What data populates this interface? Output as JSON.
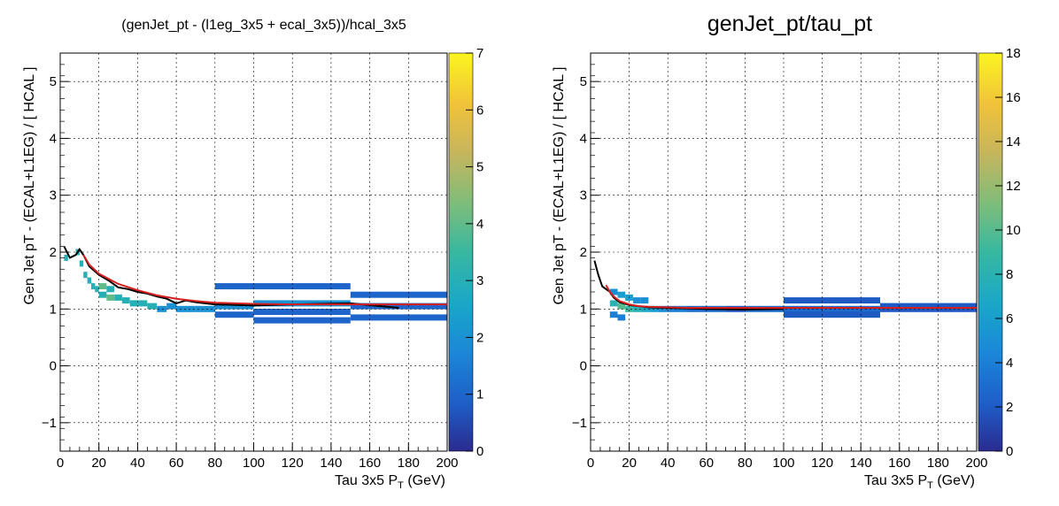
{
  "chart_data": [
    {
      "type": "heatmap",
      "title": "(genJet_pt - (l1eg_3x5 + ecal_3x5))/hcal_3x5",
      "xlabel": "Tau 3x5 P_T (GeV)",
      "ylabel": "Gen Jet pT - (ECAL+L1EG) / [ HCAL ]",
      "xlim": [
        0,
        200
      ],
      "ylim": [
        -1.5,
        5.5
      ],
      "x_ticks": [
        0,
        20,
        40,
        60,
        80,
        100,
        120,
        140,
        160,
        180,
        200
      ],
      "y_ticks": [
        -1,
        0,
        1,
        2,
        3,
        4,
        5
      ],
      "colorbar": {
        "min": 0,
        "max": 7,
        "ticks": [
          0,
          1,
          2,
          3,
          4,
          5,
          6,
          7
        ]
      },
      "grid": true,
      "profile_line": {
        "name": "",
        "color": "#000000",
        "x": [
          2,
          5,
          8,
          10,
          12,
          15,
          20,
          25,
          30,
          35,
          40,
          45,
          50,
          55,
          60,
          65,
          70,
          80,
          100,
          120,
          150,
          175
        ],
        "y": [
          2.1,
          1.9,
          1.95,
          2.05,
          1.95,
          1.75,
          1.6,
          1.5,
          1.38,
          1.35,
          1.3,
          1.27,
          1.22,
          1.18,
          1.1,
          1.15,
          1.12,
          1.08,
          1.06,
          1.08,
          1.1,
          1.02
        ]
      },
      "fit_line": {
        "name": "",
        "color": "#d62020",
        "x": [
          12,
          15,
          20,
          30,
          40,
          50,
          60,
          70,
          80,
          100,
          120,
          150,
          200
        ],
        "y": [
          1.95,
          1.78,
          1.62,
          1.44,
          1.33,
          1.24,
          1.18,
          1.14,
          1.11,
          1.09,
          1.08,
          1.08,
          1.08
        ]
      },
      "cells": [
        {
          "x0": 2,
          "x1": 4,
          "y": 1.9,
          "count": 3
        },
        {
          "x0": 8,
          "x1": 10,
          "y": 2.0,
          "count": 3
        },
        {
          "x0": 10,
          "x1": 12,
          "y": 1.8,
          "count": 3
        },
        {
          "x0": 12,
          "x1": 14,
          "y": 1.6,
          "count": 3
        },
        {
          "x0": 14,
          "x1": 16,
          "y": 1.5,
          "count": 3
        },
        {
          "x0": 16,
          "x1": 18,
          "y": 1.4,
          "count": 3
        },
        {
          "x0": 18,
          "x1": 20,
          "y": 1.35,
          "count": 3
        },
        {
          "x0": 20,
          "x1": 24,
          "y": 1.4,
          "count": 4
        },
        {
          "x0": 20,
          "x1": 24,
          "y": 1.25,
          "count": 3
        },
        {
          "x0": 24,
          "x1": 28,
          "y": 1.2,
          "count": 4
        },
        {
          "x0": 24,
          "x1": 28,
          "y": 1.35,
          "count": 3
        },
        {
          "x0": 28,
          "x1": 32,
          "y": 1.2,
          "count": 3
        },
        {
          "x0": 32,
          "x1": 36,
          "y": 1.15,
          "count": 3
        },
        {
          "x0": 36,
          "x1": 40,
          "y": 1.1,
          "count": 3
        },
        {
          "x0": 40,
          "x1": 45,
          "y": 1.1,
          "count": 3
        },
        {
          "x0": 45,
          "x1": 50,
          "y": 1.05,
          "count": 3
        },
        {
          "x0": 50,
          "x1": 55,
          "y": 1.0,
          "count": 2
        },
        {
          "x0": 55,
          "x1": 60,
          "y": 1.05,
          "count": 2
        },
        {
          "x0": 60,
          "x1": 70,
          "y": 1.0,
          "count": 2
        },
        {
          "x0": 70,
          "x1": 80,
          "y": 1.0,
          "count": 2
        },
        {
          "x0": 80,
          "x1": 100,
          "y": 1.05,
          "count": 2
        },
        {
          "x0": 80,
          "x1": 100,
          "y": 1.4,
          "count": 1
        },
        {
          "x0": 80,
          "x1": 100,
          "y": 0.9,
          "count": 1
        },
        {
          "x0": 100,
          "x1": 150,
          "y": 1.1,
          "count": 2
        },
        {
          "x0": 100,
          "x1": 150,
          "y": 1.4,
          "count": 1
        },
        {
          "x0": 100,
          "x1": 150,
          "y": 0.95,
          "count": 1
        },
        {
          "x0": 100,
          "x1": 150,
          "y": 0.8,
          "count": 1
        },
        {
          "x0": 150,
          "x1": 200,
          "y": 1.25,
          "count": 1
        },
        {
          "x0": 150,
          "x1": 200,
          "y": 1.05,
          "count": 1
        },
        {
          "x0": 150,
          "x1": 200,
          "y": 0.85,
          "count": 1
        }
      ]
    },
    {
      "type": "heatmap",
      "title": "genJet_pt/tau_pt",
      "xlabel": "Tau 3x5 P_T (GeV)",
      "ylabel": "Gen Jet pT - (ECAL+L1EG) / [ HCAL ]",
      "xlim": [
        0,
        200
      ],
      "ylim": [
        -1.5,
        5.5
      ],
      "x_ticks": [
        0,
        20,
        40,
        60,
        80,
        100,
        120,
        140,
        160,
        180,
        200
      ],
      "y_ticks": [
        -1,
        0,
        1,
        2,
        3,
        4,
        5
      ],
      "colorbar": {
        "min": 0,
        "max": 18,
        "ticks": [
          0,
          2,
          4,
          6,
          8,
          10,
          12,
          14,
          16,
          18
        ]
      },
      "grid": true,
      "profile_line": {
        "name": "",
        "color": "#000000",
        "x": [
          2,
          4,
          6,
          8,
          10,
          12,
          15,
          20,
          25,
          30,
          40,
          50,
          60,
          80,
          100
        ],
        "y": [
          1.85,
          1.6,
          1.4,
          1.35,
          1.3,
          1.2,
          1.12,
          1.07,
          1.05,
          1.03,
          1.02,
          1.01,
          1.0,
          0.99,
          1.0
        ]
      },
      "fit_line": {
        "name": "",
        "color": "#d62020",
        "x": [
          8,
          10,
          12,
          15,
          20,
          25,
          30,
          40,
          50,
          60,
          80,
          100,
          150,
          200
        ],
        "y": [
          1.42,
          1.3,
          1.22,
          1.14,
          1.08,
          1.05,
          1.04,
          1.03,
          1.02,
          1.02,
          1.02,
          1.02,
          1.02,
          1.02
        ]
      },
      "cells": [
        {
          "x0": 10,
          "x1": 14,
          "y": 1.1,
          "count": 8
        },
        {
          "x0": 14,
          "x1": 18,
          "y": 1.05,
          "count": 10
        },
        {
          "x0": 18,
          "x1": 22,
          "y": 1.0,
          "count": 9
        },
        {
          "x0": 22,
          "x1": 26,
          "y": 1.0,
          "count": 8
        },
        {
          "x0": 26,
          "x1": 30,
          "y": 1.0,
          "count": 7
        },
        {
          "x0": 30,
          "x1": 35,
          "y": 1.0,
          "count": 6
        },
        {
          "x0": 35,
          "x1": 40,
          "y": 1.0,
          "count": 5
        },
        {
          "x0": 10,
          "x1": 14,
          "y": 1.3,
          "count": 5
        },
        {
          "x0": 14,
          "x1": 18,
          "y": 1.25,
          "count": 6
        },
        {
          "x0": 18,
          "x1": 22,
          "y": 1.2,
          "count": 6
        },
        {
          "x0": 22,
          "x1": 26,
          "y": 1.15,
          "count": 5
        },
        {
          "x0": 26,
          "x1": 30,
          "y": 1.15,
          "count": 5
        },
        {
          "x0": 10,
          "x1": 14,
          "y": 0.9,
          "count": 4
        },
        {
          "x0": 14,
          "x1": 18,
          "y": 0.85,
          "count": 4
        },
        {
          "x0": 40,
          "x1": 50,
          "y": 1.0,
          "count": 4
        },
        {
          "x0": 50,
          "x1": 60,
          "y": 1.0,
          "count": 3
        },
        {
          "x0": 60,
          "x1": 70,
          "y": 1.0,
          "count": 3
        },
        {
          "x0": 70,
          "x1": 80,
          "y": 1.0,
          "count": 2
        },
        {
          "x0": 80,
          "x1": 100,
          "y": 1.0,
          "count": 3
        },
        {
          "x0": 100,
          "x1": 150,
          "y": 1.0,
          "count": 3
        },
        {
          "x0": 100,
          "x1": 150,
          "y": 1.15,
          "count": 2
        },
        {
          "x0": 100,
          "x1": 150,
          "y": 0.9,
          "count": 2
        },
        {
          "x0": 150,
          "x1": 200,
          "y": 1.0,
          "count": 2
        },
        {
          "x0": 150,
          "x1": 200,
          "y": 1.05,
          "count": 2
        }
      ]
    }
  ]
}
